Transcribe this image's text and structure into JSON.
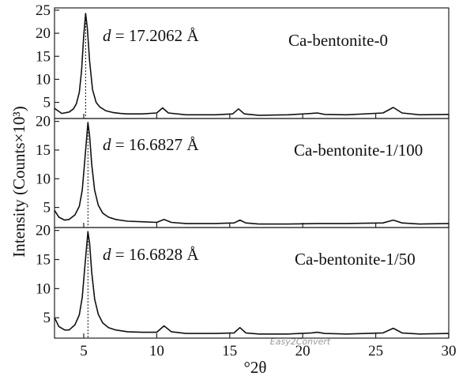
{
  "chart_data": {
    "type": "line",
    "xlabel": "°2θ",
    "ylabel": "Intensity (Counts×10³)",
    "xlim": [
      3,
      30
    ],
    "xticks": [
      5,
      10,
      15,
      20,
      25,
      30
    ],
    "grid": false,
    "watermark": "Easy2Convert",
    "panels": [
      {
        "sample": "Ca-bentonite-0",
        "d_label_prefix": "d",
        "d_label_value": "= 17.2062 Å",
        "ylim": [
          1.5,
          25.5
        ],
        "yticks": [
          5,
          10,
          15,
          20,
          25
        ],
        "peak_position": 5.13,
        "x": [
          3.0,
          3.5,
          4.0,
          4.3,
          4.5,
          4.7,
          4.85,
          5.0,
          5.13,
          5.25,
          5.4,
          5.6,
          5.85,
          6.1,
          6.5,
          7.0,
          7.5,
          8.0,
          9.0,
          10.0,
          10.4,
          10.8,
          12.0,
          14.0,
          15.2,
          15.6,
          16.0,
          17.0,
          19.0,
          20.6,
          21.0,
          21.5,
          23.0,
          25.5,
          26.2,
          26.8,
          28.0,
          30.0
        ],
        "values": [
          3.7,
          2.6,
          2.9,
          3.6,
          4.7,
          7.2,
          11.8,
          19.5,
          24.3,
          21.0,
          14.0,
          7.8,
          5.0,
          4.0,
          3.2,
          2.8,
          2.6,
          2.5,
          2.5,
          2.7,
          3.8,
          2.7,
          2.3,
          2.3,
          2.5,
          3.6,
          2.5,
          2.2,
          2.3,
          2.6,
          2.7,
          2.4,
          2.3,
          2.7,
          3.9,
          2.7,
          2.3,
          2.4
        ]
      },
      {
        "sample": "Ca-bentonite-1/100",
        "d_label_prefix": "d",
        "d_label_value": "= 16.6827 Å",
        "ylim": [
          1.5,
          20.5
        ],
        "yticks": [
          5,
          10,
          15,
          20
        ],
        "peak_position": 5.29,
        "x": [
          3.0,
          3.3,
          3.7,
          4.0,
          4.4,
          4.7,
          4.9,
          5.05,
          5.29,
          5.4,
          5.55,
          5.75,
          6.0,
          6.3,
          6.7,
          7.2,
          8.0,
          9.0,
          10.0,
          10.5,
          11.0,
          12.0,
          14.0,
          15.3,
          15.7,
          16.1,
          17.0,
          19.0,
          21.0,
          23.0,
          25.5,
          26.2,
          26.8,
          28.0,
          30.0
        ],
        "values": [
          4.5,
          3.3,
          2.8,
          2.9,
          3.7,
          5.2,
          8.0,
          12.5,
          19.8,
          17.5,
          12.5,
          8.0,
          5.4,
          4.0,
          3.3,
          2.9,
          2.6,
          2.5,
          2.4,
          2.9,
          2.4,
          2.2,
          2.2,
          2.3,
          2.8,
          2.3,
          2.1,
          2.1,
          2.2,
          2.2,
          2.3,
          2.8,
          2.3,
          2.1,
          2.2
        ]
      },
      {
        "sample": "Ca-bentonite-1/50",
        "d_label_prefix": "d",
        "d_label_value": "= 16.6828 Å",
        "ylim": [
          1.5,
          20.5
        ],
        "yticks": [
          5,
          10,
          15,
          20
        ],
        "peak_position": 5.29,
        "x": [
          3.0,
          3.3,
          3.7,
          4.0,
          4.4,
          4.7,
          4.9,
          5.05,
          5.29,
          5.4,
          5.55,
          5.75,
          6.0,
          6.3,
          6.7,
          7.2,
          8.0,
          9.0,
          10.0,
          10.5,
          11.0,
          12.0,
          14.0,
          15.3,
          15.7,
          16.1,
          17.0,
          19.0,
          20.6,
          21.0,
          21.5,
          23.0,
          25.5,
          26.2,
          26.8,
          28.0,
          30.0
        ],
        "values": [
          5.0,
          3.5,
          2.9,
          2.9,
          3.8,
          5.5,
          8.5,
          13.0,
          19.8,
          17.8,
          12.8,
          8.2,
          5.6,
          4.1,
          3.3,
          2.9,
          2.6,
          2.5,
          2.5,
          3.6,
          2.6,
          2.3,
          2.3,
          2.4,
          3.3,
          2.4,
          2.2,
          2.2,
          2.4,
          2.5,
          2.3,
          2.2,
          2.4,
          3.2,
          2.4,
          2.2,
          2.3
        ]
      }
    ]
  }
}
